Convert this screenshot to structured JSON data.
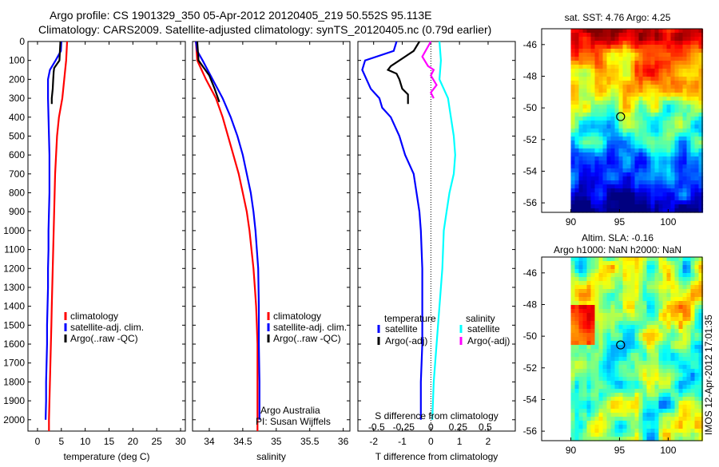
{
  "header": {
    "line1": "Argo profile: CS 1901329_350 05-Apr-2012 20120405_219 50.552S 95.113E",
    "line2": "Climatology: CARS2009. Satellite-adjusted climatology: synTS_20120405.nc (0.79d earlier)"
  },
  "colors": {
    "climatology": "#ff0000",
    "satellite": "#0000ff",
    "argo": "#000000",
    "sat_sal": "#00ffff",
    "argo_sal": "#ff00ff"
  },
  "chart_data": [
    {
      "type": "line",
      "id": "temperature",
      "xlabel": "temperature (deg C)",
      "xlim": [
        -2,
        31
      ],
      "ylim": [
        2060,
        0
      ],
      "xticks": [
        0,
        5,
        10,
        15,
        20,
        25,
        30
      ],
      "yticks": [
        0,
        100,
        200,
        300,
        400,
        500,
        600,
        700,
        800,
        900,
        1000,
        1100,
        1200,
        1300,
        1400,
        1500,
        1600,
        1700,
        1800,
        1900,
        2000
      ],
      "series": [
        {
          "name": "climatology",
          "color": "#ff0000",
          "points": [
            [
              6.2,
              0
            ],
            [
              6.0,
              100
            ],
            [
              5.6,
              200
            ],
            [
              5.2,
              300
            ],
            [
              4.5,
              400
            ],
            [
              4.1,
              500
            ],
            [
              3.9,
              600
            ],
            [
              3.7,
              700
            ],
            [
              3.6,
              800
            ],
            [
              3.5,
              900
            ],
            [
              3.4,
              1000
            ],
            [
              3.3,
              1100
            ],
            [
              3.2,
              1200
            ],
            [
              3.1,
              1300
            ],
            [
              3.0,
              1400
            ],
            [
              2.9,
              1500
            ],
            [
              2.8,
              1600
            ],
            [
              2.7,
              1700
            ],
            [
              2.6,
              1800
            ],
            [
              2.5,
              1900
            ],
            [
              2.4,
              2000
            ],
            [
              2.4,
              2060
            ]
          ]
        },
        {
          "name": "satellite-adj. clim.",
          "color": "#0000ff",
          "points": [
            [
              5.0,
              0
            ],
            [
              4.9,
              50
            ],
            [
              3.8,
              100
            ],
            [
              2.6,
              150
            ],
            [
              2.2,
              200
            ],
            [
              2.2,
              300
            ],
            [
              2.3,
              400
            ],
            [
              2.4,
              500
            ],
            [
              2.5,
              600
            ],
            [
              2.5,
              700
            ],
            [
              2.5,
              800
            ],
            [
              2.4,
              900
            ],
            [
              2.3,
              1000
            ],
            [
              2.3,
              1100
            ],
            [
              2.2,
              1200
            ],
            [
              2.2,
              1300
            ],
            [
              2.1,
              1400
            ],
            [
              2.0,
              1500
            ],
            [
              2.0,
              1600
            ],
            [
              1.9,
              1700
            ],
            [
              1.8,
              1800
            ],
            [
              1.8,
              1900
            ],
            [
              1.7,
              2000
            ]
          ]
        },
        {
          "name": "Argo(..raw -QC)",
          "color": "#000000",
          "points": [
            [
              4.8,
              0
            ],
            [
              4.7,
              50
            ],
            [
              4.6,
              100
            ],
            [
              3.5,
              140
            ],
            [
              3.4,
              160
            ],
            [
              3.3,
              200
            ],
            [
              3.2,
              250
            ],
            [
              3.0,
              300
            ],
            [
              3.0,
              330
            ]
          ]
        }
      ]
    },
    {
      "type": "line",
      "id": "salinity",
      "xlabel": "salinity",
      "xlim": [
        33.75,
        36.1
      ],
      "ylim": [
        2060,
        0
      ],
      "xticks": [
        34,
        34.5,
        35,
        35.5,
        36
      ],
      "legend_footer": [
        "Argo Australia",
        "PI: Susan Wijffels"
      ],
      "series": [
        {
          "name": "climatology",
          "color": "#ff0000",
          "points": [
            [
              33.8,
              0
            ],
            [
              33.82,
              100
            ],
            [
              33.95,
              200
            ],
            [
              34.1,
              300
            ],
            [
              34.2,
              400
            ],
            [
              34.28,
              500
            ],
            [
              34.36,
              600
            ],
            [
              34.44,
              700
            ],
            [
              34.5,
              800
            ],
            [
              34.56,
              900
            ],
            [
              34.6,
              1000
            ],
            [
              34.63,
              1100
            ],
            [
              34.66,
              1200
            ],
            [
              34.68,
              1300
            ],
            [
              34.7,
              1400
            ],
            [
              34.71,
              1500
            ],
            [
              34.72,
              1600
            ],
            [
              34.72,
              1700
            ],
            [
              34.72,
              1800
            ],
            [
              34.72,
              1900
            ],
            [
              34.72,
              2000
            ],
            [
              34.72,
              2060
            ]
          ]
        },
        {
          "name": "satellite-adj. clim.",
          "color": "#0000ff",
          "points": [
            [
              33.8,
              0
            ],
            [
              33.82,
              50
            ],
            [
              33.9,
              100
            ],
            [
              34.05,
              200
            ],
            [
              34.2,
              300
            ],
            [
              34.32,
              400
            ],
            [
              34.42,
              500
            ],
            [
              34.5,
              600
            ],
            [
              34.56,
              700
            ],
            [
              34.62,
              800
            ],
            [
              34.66,
              900
            ],
            [
              34.69,
              1000
            ],
            [
              34.71,
              1100
            ],
            [
              34.73,
              1200
            ],
            [
              34.74,
              1400
            ],
            [
              34.74,
              1600
            ],
            [
              34.75,
              1800
            ],
            [
              34.75,
              2000
            ]
          ]
        },
        {
          "name": "Argo(..raw -QC)",
          "color": "#000000",
          "points": [
            [
              33.82,
              0
            ],
            [
              33.84,
              100
            ],
            [
              34.0,
              180
            ],
            [
              34.08,
              250
            ],
            [
              34.15,
              320
            ]
          ]
        }
      ]
    },
    {
      "type": "line",
      "id": "differences",
      "xlabel": "T difference from climatology",
      "xlabel_top": "S difference from climatology",
      "xlim": [
        -2.55,
        2.95
      ],
      "ylim": [
        2060,
        0
      ],
      "xticks": [
        -2,
        -1,
        0,
        1,
        2
      ],
      "sticks": [
        {
          "label": "-0.5",
          "x": -1.9
        },
        {
          "label": "-0.25",
          "x": -0.95
        },
        {
          "label": "0",
          "x": 0
        },
        {
          "label": "0.25",
          "x": 0.95
        },
        {
          "label": "0.5",
          "x": 1.9
        }
      ],
      "legend_titles": [
        "temperature",
        "salinity"
      ],
      "series": [
        {
          "name": "satellite",
          "group": "temperature",
          "color": "#0000ff",
          "points": [
            [
              -1.2,
              0
            ],
            [
              -1.3,
              50
            ],
            [
              -2.3,
              100
            ],
            [
              -2.4,
              150
            ],
            [
              -2.1,
              250
            ],
            [
              -1.8,
              300
            ],
            [
              -1.7,
              350
            ],
            [
              -1.4,
              400
            ],
            [
              -1.1,
              500
            ],
            [
              -0.9,
              600
            ],
            [
              -0.6,
              700
            ],
            [
              -0.5,
              800
            ],
            [
              -0.4,
              900
            ],
            [
              -0.35,
              1000
            ],
            [
              -0.3,
              1200
            ],
            [
              -0.3,
              1400
            ],
            [
              -0.3,
              1600
            ],
            [
              -0.35,
              1800
            ],
            [
              -0.35,
              2000
            ]
          ]
        },
        {
          "name": "Argo(-adj)",
          "group": "temperature",
          "color": "#000000",
          "points": [
            [
              -0.4,
              0
            ],
            [
              -0.6,
              50
            ],
            [
              -1.4,
              130
            ],
            [
              -1.5,
              150
            ],
            [
              -1.2,
              170
            ],
            [
              -1.1,
              200
            ],
            [
              -1.0,
              250
            ],
            [
              -0.8,
              280
            ],
            [
              -0.8,
              330
            ]
          ]
        },
        {
          "name": "satellite",
          "group": "salinity",
          "color": "#00ffff",
          "points": [
            [
              0.3,
              0
            ],
            [
              0.35,
              100
            ],
            [
              0.3,
              200
            ],
            [
              0.6,
              300
            ],
            [
              0.7,
              400
            ],
            [
              0.8,
              500
            ],
            [
              0.85,
              600
            ],
            [
              0.8,
              700
            ],
            [
              0.65,
              800
            ],
            [
              0.55,
              900
            ],
            [
              0.45,
              1000
            ],
            [
              0.4,
              1200
            ],
            [
              0.3,
              1400
            ],
            [
              0.2,
              1600
            ],
            [
              0.1,
              1800
            ],
            [
              0.05,
              2000
            ]
          ]
        },
        {
          "name": "Argo(-adj)",
          "group": "salinity",
          "color": "#ff00ff",
          "points": [
            [
              0.0,
              0
            ],
            [
              -0.3,
              80
            ],
            [
              -0.1,
              130
            ],
            [
              0.1,
              150
            ],
            [
              0.0,
              180
            ],
            [
              0.2,
              230
            ],
            [
              0.0,
              270
            ],
            [
              0.1,
              300
            ]
          ]
        }
      ]
    },
    {
      "type": "heatmap",
      "id": "sst-map",
      "title": "sat. SST: 4.76 Argo: 4.25",
      "xlim": [
        87,
        103.5
      ],
      "ylim": [
        -56.6,
        -45
      ],
      "xticks": [
        90,
        95,
        100
      ],
      "yticks": [
        -46,
        -48,
        -50,
        -52,
        -54,
        -56
      ],
      "marker": [
        95.113,
        -50.552
      ],
      "palette": "jet",
      "data_xrange": [
        90,
        103.5
      ]
    },
    {
      "type": "heatmap",
      "id": "sla-map",
      "title": "Altim. SLA: -0.16",
      "subtitle": "Argo h1000: NaN h2000: NaN",
      "xlim": [
        87,
        103.5
      ],
      "ylim": [
        -56.6,
        -45
      ],
      "xticks": [
        90,
        95,
        100
      ],
      "yticks": [
        -46,
        -48,
        -50,
        -52,
        -54,
        -56
      ],
      "marker": [
        95.113,
        -50.552
      ],
      "palette": "jet",
      "data_xrange": [
        90,
        103.5
      ]
    }
  ],
  "footer": {
    "stamp": "IMOS 12-Apr-2012 17:01:35"
  }
}
